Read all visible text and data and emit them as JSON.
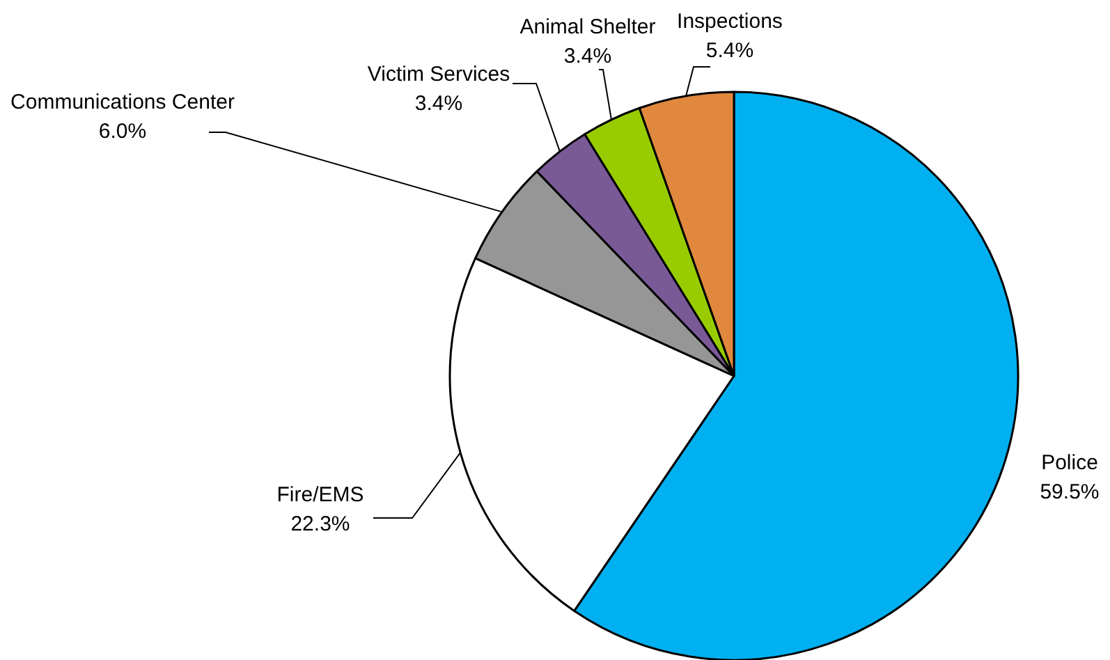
{
  "chart_data": {
    "type": "pie",
    "categories": [
      "Police",
      "Fire/EMS",
      "Communications Center",
      "Victim Services",
      "Animal Shelter",
      "Inspections"
    ],
    "values": [
      59.5,
      22.3,
      6.0,
      3.4,
      3.4,
      5.4
    ],
    "value_labels": [
      "59.5%",
      "22.3%",
      "6.0%",
      "3.4%",
      "3.4%",
      "5.4%"
    ],
    "colors": [
      "#00b0f0",
      "#ffffff",
      "#969696",
      "#7a5a96",
      "#99cc00",
      "#e0883e"
    ],
    "legend": false
  }
}
